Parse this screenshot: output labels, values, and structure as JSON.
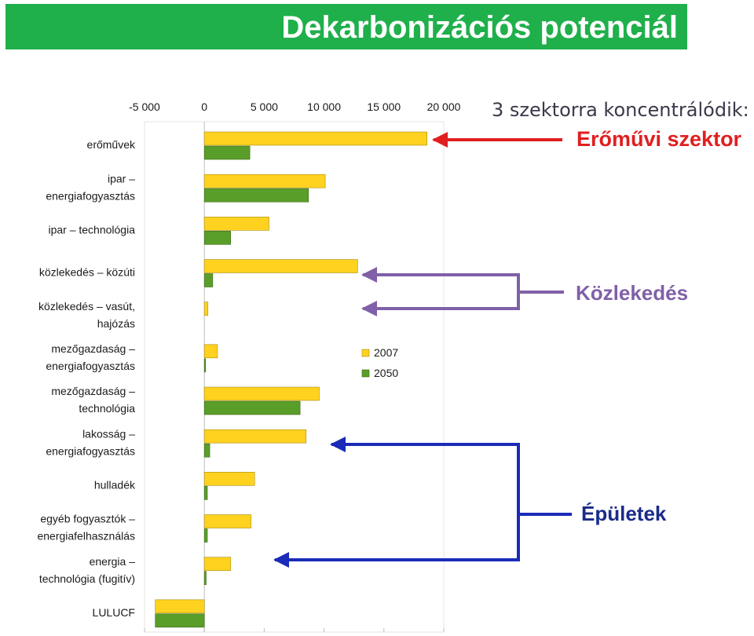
{
  "title": "Dekarbonizációs potenciál",
  "annotations": {
    "heading": "3 szektorra koncentrálódik:",
    "power": "Erőművi szektor",
    "transport": "Közlekedés",
    "buildings": "Épületek"
  },
  "colors": {
    "title_bg": "#1fb04b",
    "series_2007": "#ffd21f",
    "series_2050": "#5a9e2a",
    "power_arrow": "#e01f1f",
    "transport_arrow": "#8060a8",
    "buildings_arrow": "#1a2bb8",
    "buildings_label": "#1a2b8a"
  },
  "chart_data": {
    "type": "bar",
    "orientation": "horizontal",
    "x_ticks": [
      "-5 000",
      "0",
      "5 000",
      "10 000",
      "15 000",
      "20 000"
    ],
    "xlim": [
      -5000,
      20000
    ],
    "categories": [
      [
        "erőművek"
      ],
      [
        "ipar –",
        "energiafogyasztás"
      ],
      [
        "ipar – technológia"
      ],
      [
        "közlekedés – közúti"
      ],
      [
        "közlekedés – vasút,",
        "hajózás"
      ],
      [
        "mezőgazdaság –",
        "energiafogyasztás"
      ],
      [
        "mezőgazdaság –",
        "technológia"
      ],
      [
        "lakosság –",
        "energiafogyasztás"
      ],
      [
        "hulladék"
      ],
      [
        "egyéb fogyasztók –",
        "energiafelhasználás"
      ],
      [
        "energia –",
        "technológia (fugitív)"
      ],
      [
        "LULUCF"
      ]
    ],
    "series": [
      {
        "name": "2007",
        "values": [
          18600,
          10100,
          5400,
          12800,
          300,
          1100,
          9600,
          8500,
          4200,
          3900,
          2200,
          -4100
        ]
      },
      {
        "name": "2050",
        "values": [
          3800,
          8700,
          2200,
          700,
          0,
          50,
          8000,
          450,
          250,
          250,
          150,
          -4100
        ]
      }
    ],
    "legend_position": "center-right",
    "grid": false
  }
}
